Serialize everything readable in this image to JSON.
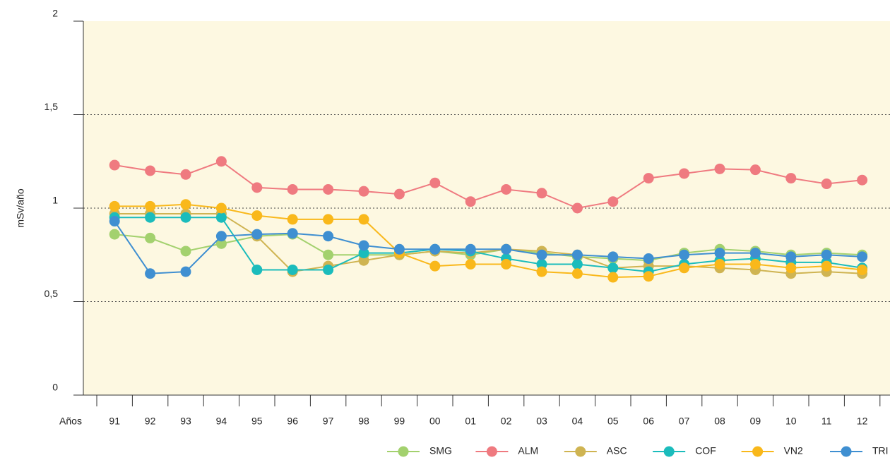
{
  "chart_data": {
    "type": "line",
    "ylabel": "mSv/año",
    "xlabel": "Años",
    "categories": [
      "91",
      "92",
      "93",
      "94",
      "95",
      "96",
      "97",
      "98",
      "99",
      "00",
      "01",
      "02",
      "03",
      "04",
      "05",
      "06",
      "07",
      "08",
      "09",
      "10",
      "11",
      "12"
    ],
    "ylim": [
      0,
      2
    ],
    "yticks": [
      0,
      {
        "value": 0.5,
        "label": "0,5"
      },
      1,
      {
        "value": 1.5,
        "label": "1,5"
      },
      2
    ],
    "grid": true,
    "legend": "bottom",
    "series": [
      {
        "name": "SMG",
        "color": "#a3d16e",
        "values": [
          0.86,
          0.84,
          0.77,
          0.81,
          0.85,
          0.86,
          0.75,
          0.75,
          0.75,
          0.77,
          0.75,
          0.78,
          0.76,
          0.74,
          0.73,
          0.72,
          0.76,
          0.78,
          0.77,
          0.75,
          0.76,
          0.75
        ]
      },
      {
        "name": "ALM",
        "color": "#ef7a80",
        "values": [
          1.23,
          1.2,
          1.18,
          1.25,
          1.11,
          1.1,
          1.1,
          1.09,
          1.075,
          1.135,
          1.035,
          1.1,
          1.08,
          1.0,
          1.035,
          1.16,
          1.185,
          1.21,
          1.205,
          1.16,
          1.13,
          1.15
        ]
      },
      {
        "name": "ASC",
        "color": "#cfb452",
        "values": [
          0.97,
          0.97,
          0.97,
          0.97,
          0.85,
          0.66,
          0.69,
          0.72,
          0.75,
          0.77,
          0.76,
          0.78,
          0.77,
          0.75,
          0.68,
          0.69,
          0.69,
          0.68,
          0.67,
          0.65,
          0.66,
          0.65
        ]
      },
      {
        "name": "COF",
        "color": "#1bbcbc",
        "values": [
          0.95,
          0.95,
          0.95,
          0.95,
          0.67,
          0.67,
          0.67,
          0.76,
          0.76,
          0.78,
          0.77,
          0.73,
          0.7,
          0.7,
          0.68,
          0.66,
          0.7,
          0.72,
          0.73,
          0.71,
          0.71,
          0.68
        ]
      },
      {
        "name": "VN2",
        "color": "#f9b81b",
        "values": [
          1.01,
          1.01,
          1.02,
          1.0,
          0.96,
          0.94,
          0.94,
          0.94,
          0.76,
          0.69,
          0.7,
          0.7,
          0.66,
          0.65,
          0.63,
          0.635,
          0.68,
          0.7,
          0.7,
          0.68,
          0.69,
          0.67
        ]
      },
      {
        "name": "TRI",
        "color": "#3f8fd1",
        "values": [
          0.93,
          0.65,
          0.66,
          0.85,
          0.86,
          0.865,
          0.85,
          0.8,
          0.78,
          0.78,
          0.78,
          0.78,
          0.75,
          0.75,
          0.74,
          0.73,
          0.75,
          0.76,
          0.76,
          0.74,
          0.75,
          0.74
        ]
      }
    ]
  }
}
